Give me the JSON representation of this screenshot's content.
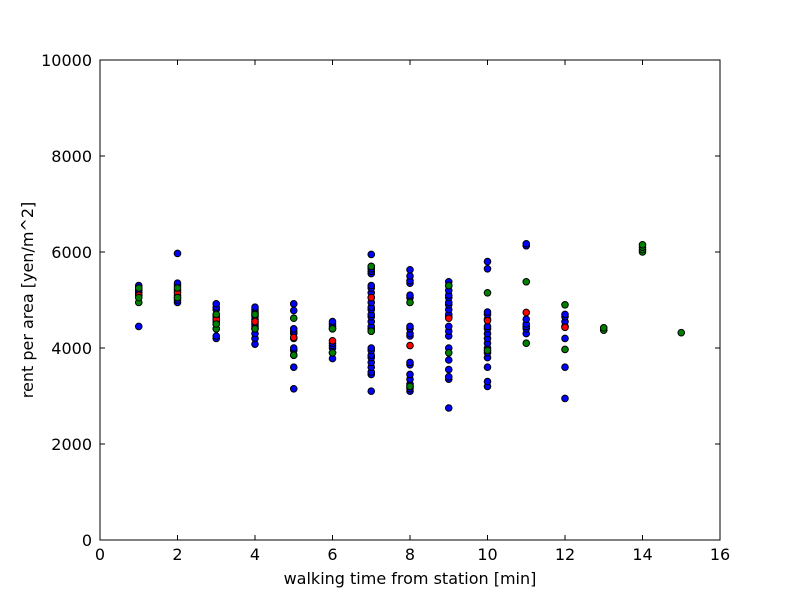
{
  "chart_data": {
    "type": "scatter",
    "title": "",
    "xlabel": "walking time from station [min]",
    "ylabel": "rent per area [yen/m^2]",
    "xlim": [
      0,
      16
    ],
    "ylim": [
      0,
      10000
    ],
    "xticks": [
      0,
      2,
      4,
      6,
      8,
      10,
      12,
      14,
      16
    ],
    "yticks": [
      0,
      2000,
      4000,
      6000,
      8000,
      10000
    ],
    "grid": false,
    "legend": false,
    "series": [
      {
        "color": "#0000ff",
        "points": [
          [
            1,
            4450
          ],
          [
            1,
            5100
          ],
          [
            1,
            5150
          ],
          [
            1,
            5200
          ],
          [
            1,
            5250
          ],
          [
            1,
            5300
          ],
          [
            2,
            4950
          ],
          [
            2,
            5000
          ],
          [
            2,
            5050
          ],
          [
            2,
            5100
          ],
          [
            2,
            5200
          ],
          [
            2,
            5300
          ],
          [
            2,
            5350
          ],
          [
            2,
            5970
          ],
          [
            3,
            4200
          ],
          [
            3,
            4250
          ],
          [
            3,
            4400
          ],
          [
            3,
            4500
          ],
          [
            3,
            4550
          ],
          [
            3,
            4600
          ],
          [
            3,
            4650
          ],
          [
            3,
            4700
          ],
          [
            3,
            4800
          ],
          [
            3,
            4850
          ],
          [
            3,
            4920
          ],
          [
            4,
            4080
          ],
          [
            4,
            4200
          ],
          [
            4,
            4300
          ],
          [
            4,
            4400
          ],
          [
            4,
            4450
          ],
          [
            4,
            4500
          ],
          [
            4,
            4550
          ],
          [
            4,
            4600
          ],
          [
            4,
            4650
          ],
          [
            4,
            4700
          ],
          [
            4,
            4750
          ],
          [
            4,
            4800
          ],
          [
            4,
            4850
          ],
          [
            5,
            3150
          ],
          [
            5,
            3600
          ],
          [
            5,
            3850
          ],
          [
            5,
            3950
          ],
          [
            5,
            4000
          ],
          [
            5,
            4200
          ],
          [
            5,
            4300
          ],
          [
            5,
            4350
          ],
          [
            5,
            4400
          ],
          [
            5,
            4780
          ],
          [
            5,
            4920
          ],
          [
            6,
            3780
          ],
          [
            6,
            3900
          ],
          [
            6,
            4000
          ],
          [
            6,
            4050
          ],
          [
            6,
            4100
          ],
          [
            6,
            4400
          ],
          [
            6,
            4450
          ],
          [
            6,
            4500
          ],
          [
            6,
            4550
          ],
          [
            7,
            3100
          ],
          [
            7,
            3450
          ],
          [
            7,
            3500
          ],
          [
            7,
            3600
          ],
          [
            7,
            3700
          ],
          [
            7,
            3800
          ],
          [
            7,
            3850
          ],
          [
            7,
            3950
          ],
          [
            7,
            4000
          ],
          [
            7,
            4350
          ],
          [
            7,
            4400
          ],
          [
            7,
            4450
          ],
          [
            7,
            4550
          ],
          [
            7,
            4650
          ],
          [
            7,
            4700
          ],
          [
            7,
            4800
          ],
          [
            7,
            4850
          ],
          [
            7,
            4950
          ],
          [
            7,
            5050
          ],
          [
            7,
            5150
          ],
          [
            7,
            5250
          ],
          [
            7,
            5300
          ],
          [
            7,
            5550
          ],
          [
            7,
            5600
          ],
          [
            7,
            5650
          ],
          [
            7,
            5700
          ],
          [
            7,
            5950
          ],
          [
            8,
            3100
          ],
          [
            8,
            3150
          ],
          [
            8,
            3200
          ],
          [
            8,
            3250
          ],
          [
            8,
            3350
          ],
          [
            8,
            3450
          ],
          [
            8,
            3650
          ],
          [
            8,
            3700
          ],
          [
            8,
            4250
          ],
          [
            8,
            4300
          ],
          [
            8,
            4400
          ],
          [
            8,
            4450
          ],
          [
            8,
            5050
          ],
          [
            8,
            5100
          ],
          [
            8,
            5350
          ],
          [
            8,
            5400
          ],
          [
            8,
            5500
          ],
          [
            8,
            5630
          ],
          [
            9,
            2750
          ],
          [
            9,
            3350
          ],
          [
            9,
            3400
          ],
          [
            9,
            3550
          ],
          [
            9,
            3750
          ],
          [
            9,
            4000
          ],
          [
            9,
            4250
          ],
          [
            9,
            4350
          ],
          [
            9,
            4450
          ],
          [
            9,
            4650
          ],
          [
            9,
            4700
          ],
          [
            9,
            4800
          ],
          [
            9,
            4900
          ],
          [
            9,
            4950
          ],
          [
            9,
            5050
          ],
          [
            9,
            5100
          ],
          [
            9,
            5200
          ],
          [
            9,
            5300
          ],
          [
            9,
            5380
          ],
          [
            10,
            3200
          ],
          [
            10,
            3300
          ],
          [
            10,
            3600
          ],
          [
            10,
            3800
          ],
          [
            10,
            3900
          ],
          [
            10,
            4000
          ],
          [
            10,
            4100
          ],
          [
            10,
            4200
          ],
          [
            10,
            4300
          ],
          [
            10,
            4400
          ],
          [
            10,
            4450
          ],
          [
            10,
            4600
          ],
          [
            10,
            4700
          ],
          [
            10,
            4750
          ],
          [
            10,
            5650
          ],
          [
            10,
            5800
          ],
          [
            11,
            4300
          ],
          [
            11,
            4400
          ],
          [
            11,
            4450
          ],
          [
            11,
            4500
          ],
          [
            11,
            4600
          ],
          [
            11,
            6130
          ],
          [
            11,
            6170
          ],
          [
            12,
            2950
          ],
          [
            12,
            3600
          ],
          [
            12,
            4200
          ],
          [
            12,
            4450
          ],
          [
            12,
            4550
          ],
          [
            12,
            4650
          ],
          [
            12,
            4700
          ]
        ]
      },
      {
        "color": "#ff0000",
        "points": [
          [
            1,
            5100
          ],
          [
            2,
            5150
          ],
          [
            3,
            4600
          ],
          [
            4,
            4550
          ],
          [
            5,
            4220
          ],
          [
            6,
            4150
          ],
          [
            7,
            5050
          ],
          [
            8,
            4050
          ],
          [
            9,
            4620
          ],
          [
            10,
            4570
          ],
          [
            11,
            4740
          ],
          [
            12,
            4430
          ]
        ]
      },
      {
        "color": "#008000",
        "points": [
          [
            1,
            4950
          ],
          [
            1,
            5050
          ],
          [
            1,
            5250
          ],
          [
            2,
            5050
          ],
          [
            2,
            5250
          ],
          [
            3,
            4400
          ],
          [
            3,
            4500
          ],
          [
            3,
            4700
          ],
          [
            4,
            4400
          ],
          [
            4,
            4700
          ],
          [
            5,
            3850
          ],
          [
            5,
            4620
          ],
          [
            6,
            3900
          ],
          [
            6,
            4400
          ],
          [
            7,
            4350
          ],
          [
            7,
            5700
          ],
          [
            8,
            3200
          ],
          [
            8,
            4950
          ],
          [
            9,
            3900
          ],
          [
            9,
            5300
          ],
          [
            10,
            3950
          ],
          [
            10,
            5150
          ],
          [
            11,
            4100
          ],
          [
            11,
            5380
          ],
          [
            12,
            3970
          ],
          [
            12,
            4900
          ],
          [
            13,
            4370
          ],
          [
            13,
            4420
          ],
          [
            14,
            6000
          ],
          [
            14,
            6050
          ],
          [
            14,
            6100
          ],
          [
            14,
            6150
          ],
          [
            15,
            4320
          ]
        ]
      }
    ]
  }
}
